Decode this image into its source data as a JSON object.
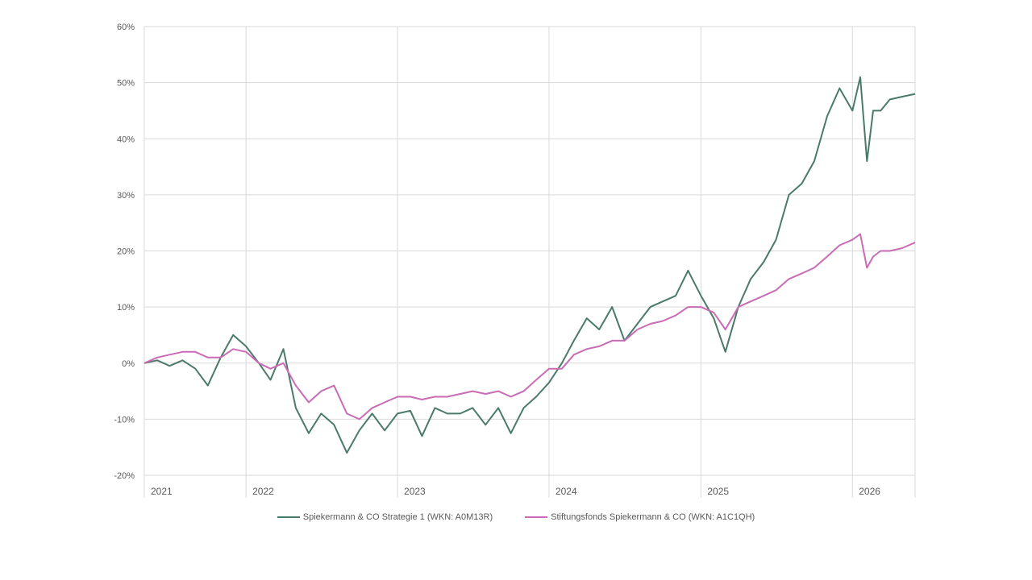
{
  "chart_data": {
    "type": "line",
    "title": "",
    "xlabel": "",
    "ylabel": "",
    "ylim": [
      -20,
      60
    ],
    "y_ticks": [
      -20,
      -10,
      0,
      10,
      20,
      30,
      40,
      50,
      60
    ],
    "y_tick_labels": [
      "-20%",
      "-10%",
      "0%",
      "10%",
      "20%",
      "30%",
      "40%",
      "50%",
      "60%"
    ],
    "x_range": [
      "2021-05-01",
      "2026-06-01"
    ],
    "year_boundaries": [
      "2022-01-01",
      "2023-01-01",
      "2024-01-01",
      "2025-01-01",
      "2026-01-01"
    ],
    "x_tick_labels": [
      {
        "label": "2021",
        "date": "2021-05-01"
      },
      {
        "label": "2022",
        "date": "2022-01-01"
      },
      {
        "label": "2023",
        "date": "2023-01-01"
      },
      {
        "label": "2024",
        "date": "2024-01-01"
      },
      {
        "label": "2025",
        "date": "2025-01-01"
      },
      {
        "label": "2026",
        "date": "2026-01-01"
      }
    ],
    "grid": true,
    "legend_position": "bottom",
    "series": [
      {
        "name": "Spiekermann & CO Strategie 1 (WKN: A0M13R)",
        "color": "#4a7a6c",
        "points": [
          [
            "2021-05-01",
            0
          ],
          [
            "2021-06-01",
            0.5
          ],
          [
            "2021-07-01",
            -0.5
          ],
          [
            "2021-08-01",
            0.5
          ],
          [
            "2021-09-01",
            -1
          ],
          [
            "2021-10-01",
            -4
          ],
          [
            "2021-11-01",
            1
          ],
          [
            "2021-12-01",
            5
          ],
          [
            "2022-01-01",
            3
          ],
          [
            "2022-02-01",
            0
          ],
          [
            "2022-03-01",
            -3
          ],
          [
            "2022-04-01",
            2.5
          ],
          [
            "2022-05-01",
            -8
          ],
          [
            "2022-06-01",
            -12.5
          ],
          [
            "2022-07-01",
            -9
          ],
          [
            "2022-08-01",
            -11
          ],
          [
            "2022-09-01",
            -16
          ],
          [
            "2022-10-01",
            -12
          ],
          [
            "2022-11-01",
            -9
          ],
          [
            "2022-12-01",
            -12
          ],
          [
            "2023-01-01",
            -9
          ],
          [
            "2023-02-01",
            -8.5
          ],
          [
            "2023-03-01",
            -13
          ],
          [
            "2023-04-01",
            -8
          ],
          [
            "2023-05-01",
            -9
          ],
          [
            "2023-06-01",
            -9
          ],
          [
            "2023-07-01",
            -8
          ],
          [
            "2023-08-01",
            -11
          ],
          [
            "2023-09-01",
            -8
          ],
          [
            "2023-10-01",
            -12.5
          ],
          [
            "2023-11-01",
            -8
          ],
          [
            "2023-12-01",
            -6
          ],
          [
            "2024-01-01",
            -3.5
          ],
          [
            "2024-02-01",
            0
          ],
          [
            "2024-03-01",
            4
          ],
          [
            "2024-04-01",
            8
          ],
          [
            "2024-05-01",
            6
          ],
          [
            "2024-06-01",
            10
          ],
          [
            "2024-07-01",
            4
          ],
          [
            "2024-08-01",
            7
          ],
          [
            "2024-09-01",
            10
          ],
          [
            "2024-10-01",
            11
          ],
          [
            "2024-11-01",
            12
          ],
          [
            "2024-12-01",
            16.5
          ],
          [
            "2025-01-01",
            12
          ],
          [
            "2025-02-01",
            8
          ],
          [
            "2025-03-01",
            2
          ],
          [
            "2025-04-01",
            10
          ],
          [
            "2025-05-01",
            15
          ],
          [
            "2025-06-01",
            18
          ],
          [
            "2025-07-01",
            22
          ],
          [
            "2025-08-01",
            30
          ],
          [
            "2025-09-01",
            32
          ],
          [
            "2025-10-01",
            36
          ],
          [
            "2025-11-01",
            44
          ],
          [
            "2025-12-01",
            49
          ],
          [
            "2026-01-01",
            45
          ],
          [
            "2026-01-20",
            51
          ],
          [
            "2026-02-05",
            36
          ],
          [
            "2026-02-20",
            45
          ],
          [
            "2026-03-10",
            45
          ],
          [
            "2026-04-01",
            47
          ],
          [
            "2026-05-01",
            47.5
          ],
          [
            "2026-06-01",
            48
          ]
        ]
      },
      {
        "name": "Stiftungsfonds Spiekermann & CO (WKN: A1C1QH)",
        "color": "#c96bb5",
        "points": [
          [
            "2021-05-01",
            0
          ],
          [
            "2021-06-01",
            1
          ],
          [
            "2021-07-01",
            1.5
          ],
          [
            "2021-08-01",
            2
          ],
          [
            "2021-09-01",
            2
          ],
          [
            "2021-10-01",
            1
          ],
          [
            "2021-11-01",
            1
          ],
          [
            "2021-12-01",
            2.5
          ],
          [
            "2022-01-01",
            2
          ],
          [
            "2022-02-01",
            0
          ],
          [
            "2022-03-01",
            -1
          ],
          [
            "2022-04-01",
            0
          ],
          [
            "2022-05-01",
            -4
          ],
          [
            "2022-06-01",
            -7
          ],
          [
            "2022-07-01",
            -5
          ],
          [
            "2022-08-01",
            -4
          ],
          [
            "2022-09-01",
            -9
          ],
          [
            "2022-10-01",
            -10
          ],
          [
            "2022-11-01",
            -8
          ],
          [
            "2022-12-01",
            -7
          ],
          [
            "2023-01-01",
            -6
          ],
          [
            "2023-02-01",
            -6
          ],
          [
            "2023-03-01",
            -6.5
          ],
          [
            "2023-04-01",
            -6
          ],
          [
            "2023-05-01",
            -6
          ],
          [
            "2023-06-01",
            -5.5
          ],
          [
            "2023-07-01",
            -5
          ],
          [
            "2023-08-01",
            -5.5
          ],
          [
            "2023-09-01",
            -5
          ],
          [
            "2023-10-01",
            -6
          ],
          [
            "2023-11-01",
            -5
          ],
          [
            "2023-12-01",
            -3
          ],
          [
            "2024-01-01",
            -1
          ],
          [
            "2024-02-01",
            -1
          ],
          [
            "2024-03-01",
            1.5
          ],
          [
            "2024-04-01",
            2.5
          ],
          [
            "2024-05-01",
            3
          ],
          [
            "2024-06-01",
            4
          ],
          [
            "2024-07-01",
            4
          ],
          [
            "2024-08-01",
            6
          ],
          [
            "2024-09-01",
            7
          ],
          [
            "2024-10-01",
            7.5
          ],
          [
            "2024-11-01",
            8.5
          ],
          [
            "2024-12-01",
            10
          ],
          [
            "2025-01-01",
            10
          ],
          [
            "2025-02-01",
            9
          ],
          [
            "2025-03-01",
            6
          ],
          [
            "2025-04-01",
            10
          ],
          [
            "2025-05-01",
            11
          ],
          [
            "2025-06-01",
            12
          ],
          [
            "2025-07-01",
            13
          ],
          [
            "2025-08-01",
            15
          ],
          [
            "2025-09-01",
            16
          ],
          [
            "2025-10-01",
            17
          ],
          [
            "2025-11-01",
            19
          ],
          [
            "2025-12-01",
            21
          ],
          [
            "2026-01-01",
            22
          ],
          [
            "2026-01-20",
            23
          ],
          [
            "2026-02-05",
            17
          ],
          [
            "2026-02-20",
            19
          ],
          [
            "2026-03-10",
            20
          ],
          [
            "2026-04-01",
            20
          ],
          [
            "2026-05-01",
            20.5
          ],
          [
            "2026-06-01",
            21.5
          ]
        ]
      }
    ]
  }
}
